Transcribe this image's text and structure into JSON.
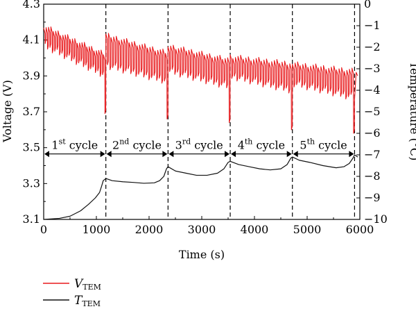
{
  "chart_data": {
    "type": "line",
    "xlabel": "Time (s)",
    "ylabel_left": "Voltage (V)",
    "ylabel_right": "Temperature (°C)",
    "xlim": [
      0,
      6000
    ],
    "ylim_left": [
      3.1,
      4.3
    ],
    "ylim_right": [
      -10,
      0
    ],
    "x_ticks": [
      0,
      1000,
      2000,
      3000,
      4000,
      5000,
      6000
    ],
    "y_left_ticks": [
      3.1,
      3.3,
      3.5,
      3.7,
      3.9,
      4.1,
      4.3
    ],
    "y_left_tick_labels": [
      "3.1",
      "3.3",
      "3.5",
      "3.7",
      "3.9",
      "4.1",
      "4.3"
    ],
    "y_right_ticks": [
      0,
      -1,
      -2,
      -3,
      -4,
      -5,
      -6,
      -7,
      -8,
      -9,
      -10
    ],
    "y_right_tick_labels": [
      "0",
      "−1",
      "−2",
      "−3",
      "−4",
      "−5",
      "−6",
      "−7",
      "−8",
      "−9",
      "−10"
    ],
    "grid": false,
    "legend_placement": "bottom-left",
    "cycle_boundaries": [
      0,
      1180,
      2360,
      3540,
      4720,
      5900
    ],
    "cycles": [
      {
        "base": "1",
        "sup": "st",
        "word": " cycle"
      },
      {
        "base": "2",
        "sup": "nd",
        "word": " cycle"
      },
      {
        "base": "3",
        "sup": "rd",
        "word": " cycle"
      },
      {
        "base": "4",
        "sup": "th",
        "word": " cycle"
      },
      {
        "base": "5",
        "sup": "th",
        "word": " cycle"
      }
    ],
    "cycle_arrow_voltage": 3.465,
    "series": [
      {
        "name": "V_TEM",
        "name_main": "V",
        "name_sub": "TEM",
        "axis": "left",
        "color": "#e8191c",
        "cycles": [
          {
            "start": 0,
            "end": 1180,
            "peak_start": 4.18,
            "peak_end": 4.02,
            "dip_start": 4.08,
            "dip_end": 3.91,
            "min": 3.69,
            "pulses": 26
          },
          {
            "start": 1180,
            "end": 2360,
            "peak_start": 4.13,
            "peak_end": 4.03,
            "dip_start": 3.97,
            "dip_end": 3.88,
            "min": 3.66,
            "pulses": 24
          },
          {
            "start": 2360,
            "end": 3540,
            "peak_start": 4.07,
            "peak_end": 3.99,
            "dip_start": 3.94,
            "dip_end": 3.85,
            "min": 3.64,
            "pulses": 24
          },
          {
            "start": 3540,
            "end": 4720,
            "peak_start": 4.01,
            "peak_end": 3.97,
            "dip_start": 3.91,
            "dip_end": 3.83,
            "min": 3.6,
            "pulses": 24
          },
          {
            "start": 4720,
            "end": 5900,
            "peak_start": 3.97,
            "peak_end": 3.93,
            "dip_start": 3.87,
            "dip_end": 3.79,
            "min": 3.58,
            "pulses": 24
          }
        ],
        "tail": [
          [
            5900,
            3.77
          ],
          [
            5930,
            3.92
          ],
          [
            5960,
            3.9
          ]
        ]
      },
      {
        "name": "T_TEM",
        "name_main": "T",
        "name_sub": "TEM",
        "axis": "right",
        "color": "#111111",
        "points": [
          [
            0,
            -10
          ],
          [
            300,
            -9.95
          ],
          [
            500,
            -9.85
          ],
          [
            700,
            -9.6
          ],
          [
            850,
            -9.3
          ],
          [
            980,
            -9.0
          ],
          [
            1060,
            -8.75
          ],
          [
            1100,
            -8.45
          ],
          [
            1130,
            -8.2
          ],
          [
            1180,
            -8.1
          ],
          [
            1300,
            -8.2
          ],
          [
            1500,
            -8.25
          ],
          [
            1700,
            -8.28
          ],
          [
            1900,
            -8.32
          ],
          [
            2100,
            -8.3
          ],
          [
            2200,
            -8.2
          ],
          [
            2280,
            -8.0
          ],
          [
            2330,
            -7.65
          ],
          [
            2360,
            -7.55
          ],
          [
            2500,
            -7.75
          ],
          [
            2700,
            -7.85
          ],
          [
            2900,
            -7.95
          ],
          [
            3100,
            -7.95
          ],
          [
            3300,
            -7.85
          ],
          [
            3420,
            -7.65
          ],
          [
            3500,
            -7.35
          ],
          [
            3540,
            -7.3
          ],
          [
            3700,
            -7.45
          ],
          [
            3900,
            -7.55
          ],
          [
            4100,
            -7.65
          ],
          [
            4300,
            -7.7
          ],
          [
            4500,
            -7.65
          ],
          [
            4620,
            -7.45
          ],
          [
            4690,
            -7.15
          ],
          [
            4720,
            -7.1
          ],
          [
            4850,
            -7.25
          ],
          [
            5050,
            -7.35
          ],
          [
            5300,
            -7.5
          ],
          [
            5550,
            -7.6
          ],
          [
            5700,
            -7.55
          ],
          [
            5800,
            -7.4
          ],
          [
            5870,
            -7.15
          ],
          [
            5900,
            -7.0
          ],
          [
            5960,
            -7.1
          ]
        ]
      }
    ]
  }
}
